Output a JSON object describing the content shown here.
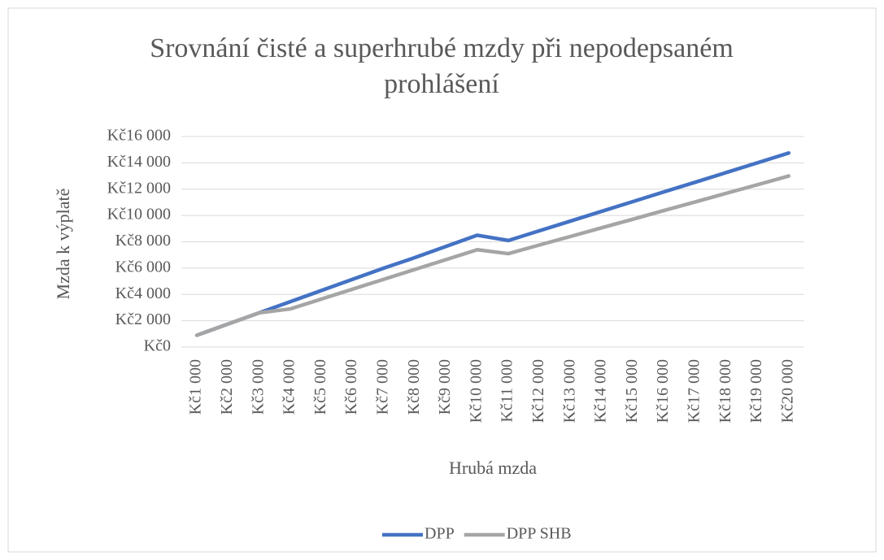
{
  "chart_data": {
    "type": "line",
    "title": "Srovnání čisté a superhrubé mzdy při nepodepsaném prohlášení",
    "x_label": "Hrubá mzda",
    "y_label": "Mzda k výplatě",
    "categories": [
      "Kč1 000",
      "Kč2 000",
      "Kč3 000",
      "Kč4 000",
      "Kč5 000",
      "Kč6 000",
      "Kč7 000",
      "Kč8 000",
      "Kč9 000",
      "Kč10 000",
      "Kč11 000",
      "Kč12 000",
      "Kč13 000",
      "Kč14 000",
      "Kč15 000",
      "Kč16 000",
      "Kč17 000",
      "Kč18 000",
      "Kč19 000",
      "Kč20 000"
    ],
    "series": [
      {
        "name": "DPP",
        "color": "#4472c4",
        "values": [
          900,
          1750,
          2600,
          3450,
          4300,
          5150,
          6000,
          6800,
          7650,
          8500,
          8100,
          8840,
          9580,
          10320,
          11060,
          11800,
          12530,
          13270,
          14010,
          14750
        ]
      },
      {
        "name": "DPP SHB",
        "color": "#a5a5a5",
        "values": [
          900,
          1750,
          2600,
          2900,
          3650,
          4400,
          5150,
          5900,
          6650,
          7400,
          7100,
          7760,
          8410,
          9070,
          9720,
          10380,
          11030,
          11690,
          12340,
          13000
        ]
      }
    ],
    "ylim": [
      0,
      16000
    ],
    "yticks": [
      {
        "value": 0,
        "label": "Kč0"
      },
      {
        "value": 2000,
        "label": "Kč2 000"
      },
      {
        "value": 4000,
        "label": "Kč4 000"
      },
      {
        "value": 6000,
        "label": "Kč6 000"
      },
      {
        "value": 8000,
        "label": "Kč8 000"
      },
      {
        "value": 10000,
        "label": "Kč10 000"
      },
      {
        "value": 12000,
        "label": "Kč12 000"
      },
      {
        "value": 14000,
        "label": "Kč14 000"
      },
      {
        "value": 16000,
        "label": "Kč16 000"
      }
    ],
    "grid": true,
    "legend": "bottom"
  }
}
